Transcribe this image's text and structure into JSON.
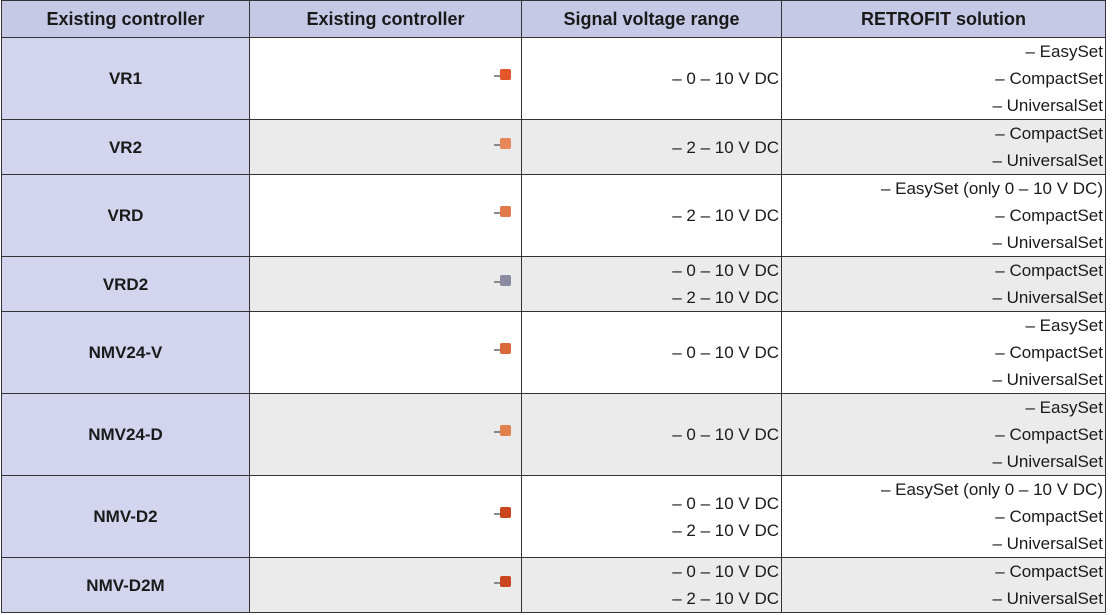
{
  "table": {
    "header": [
      "Existing controller",
      "Existing controller",
      "Signal voltage range",
      "RETROFIT solution"
    ],
    "rows": [
      {
        "name": "VR1",
        "voltages": [
          "– 0 – 10 V DC"
        ],
        "solutions": [
          "– EasySet",
          "– CompactSet",
          "– UniversalSet"
        ]
      },
      {
        "name": "VR2",
        "voltages": [
          "– 2 – 10 V DC"
        ],
        "solutions": [
          "– CompactSet",
          "– UniversalSet"
        ]
      },
      {
        "name": "VRD",
        "voltages": [
          "– 2 – 10 V DC"
        ],
        "solutions": [
          "– EasySet (only 0 – 10 V DC)",
          "– CompactSet",
          "– UniversalSet"
        ]
      },
      {
        "name": "VRD2",
        "voltages": [
          "– 0 – 10 V DC",
          "– 2 – 10 V DC"
        ],
        "solutions": [
          "– CompactSet",
          "– UniversalSet"
        ]
      },
      {
        "name": "NMV24-V",
        "voltages": [
          "– 0 – 10 V DC"
        ],
        "solutions": [
          "– EasySet",
          "– CompactSet",
          "– UniversalSet"
        ]
      },
      {
        "name": "NMV24-D",
        "voltages": [
          "– 0 – 10 V DC"
        ],
        "solutions": [
          "– EasySet",
          "– CompactSet",
          "– UniversalSet"
        ]
      },
      {
        "name": "NMV-D2",
        "voltages": [
          "– 0 – 10 V DC",
          "– 2 – 10 V DC"
        ],
        "solutions": [
          "– EasySet (only 0 – 10 V DC)",
          "– CompactSet",
          "– UniversalSet"
        ]
      },
      {
        "name": "NMV-D2M",
        "voltages": [
          "– 0 – 10 V DC",
          "– 2 – 10 V DC"
        ],
        "solutions": [
          "– CompactSet",
          "– UniversalSet"
        ]
      }
    ]
  }
}
